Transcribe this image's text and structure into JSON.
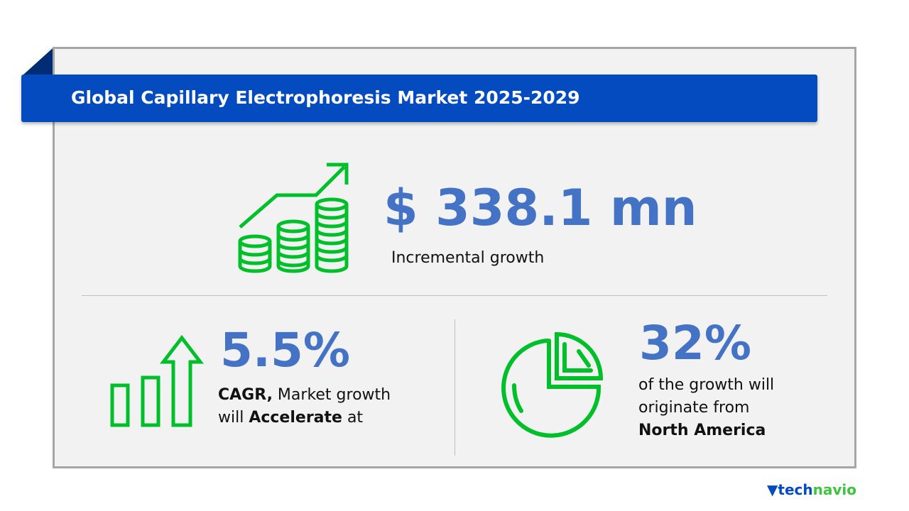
{
  "title": "Global Capillary Electrophoresis Market 2025-2029",
  "incremental": {
    "value": "$ 338.1 mn",
    "label": "Incremental growth"
  },
  "cagr": {
    "value": "5.5%",
    "line1_bold": "CAGR,",
    "line1": " Market growth",
    "line2": "will ",
    "line2_bold": "Accelerate",
    "line2_end": " at"
  },
  "region": {
    "value": "32%",
    "line1": "of the growth will",
    "line2": "originate from",
    "region": "North America"
  },
  "logo": {
    "part1": "tech",
    "part2": "navio"
  },
  "colors": {
    "banner": "#034bbf",
    "accent": "#4472c4",
    "icon": "#00c02a"
  }
}
